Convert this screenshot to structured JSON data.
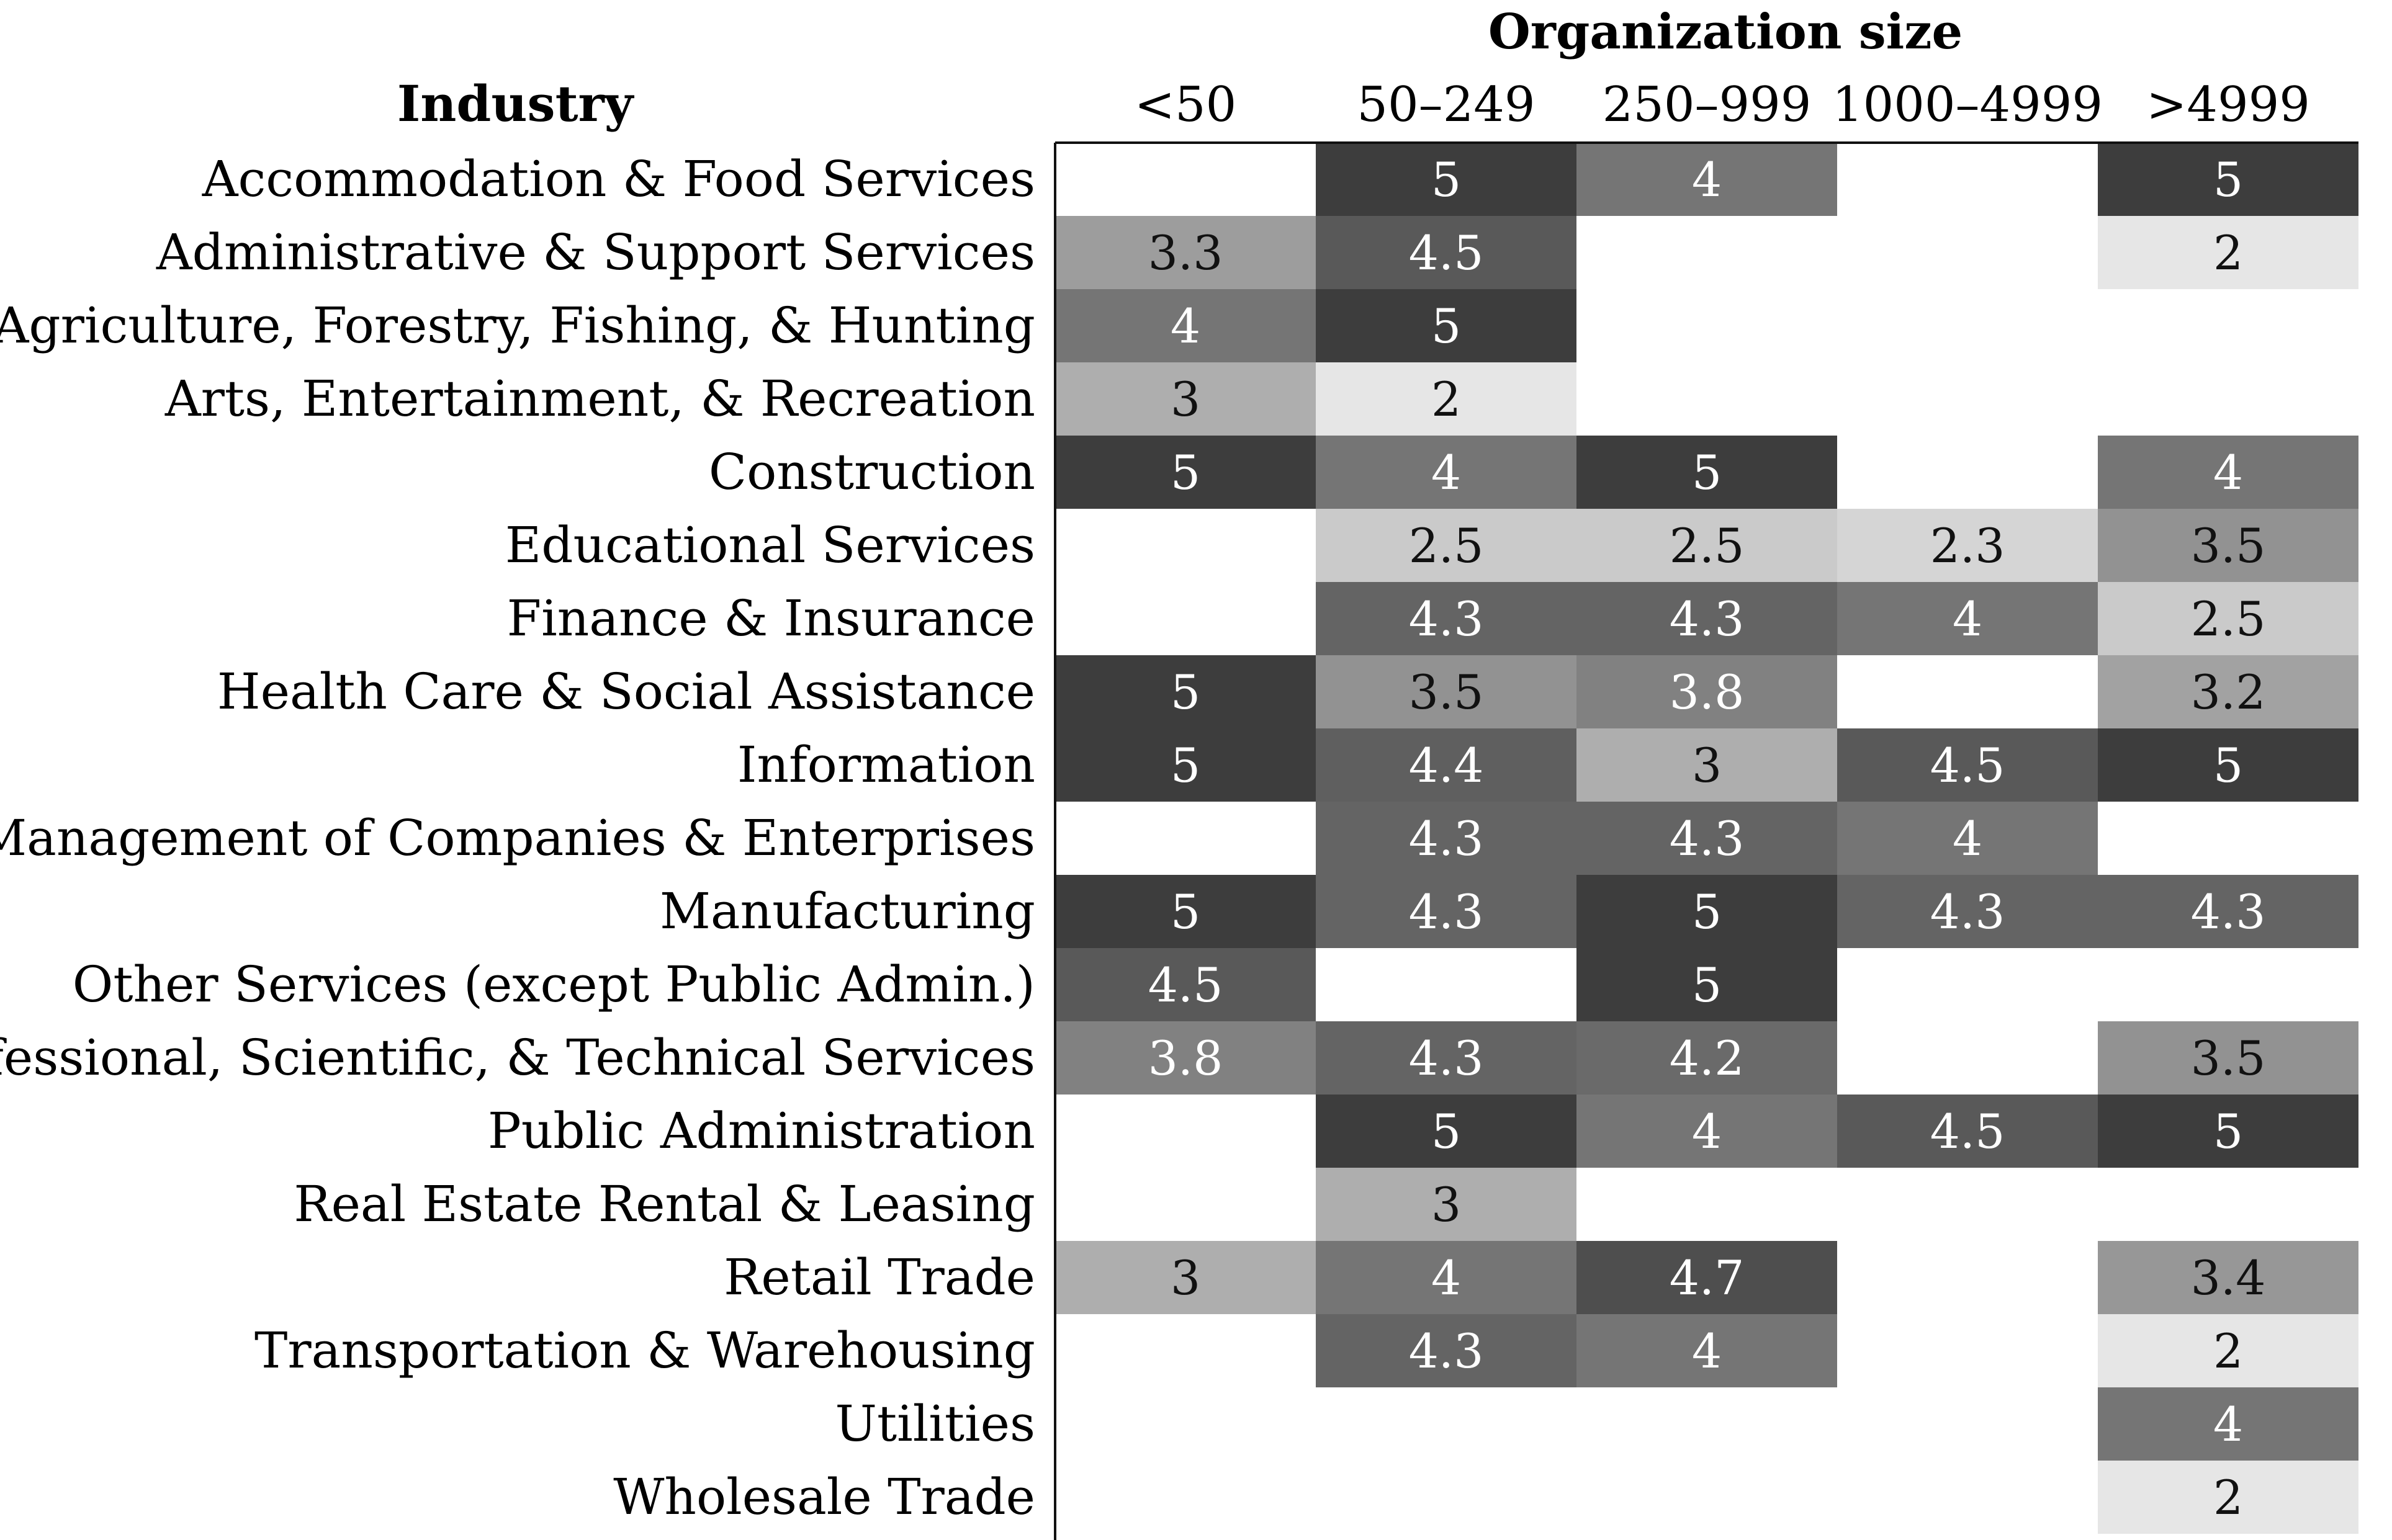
{
  "chart_data": {
    "type": "heatmap",
    "title": "Organization size",
    "row_header": "Industry",
    "columns": [
      "<50",
      "50–249",
      "250–999",
      "1000–4999",
      ">4999"
    ],
    "rows": [
      "Accommodation & Food Services",
      "Administrative & Support Services",
      "Agriculture, Forestry, Fishing, & Hunting",
      "Arts, Entertainment, & Recreation",
      "Construction",
      "Educational Services",
      "Finance & Insurance",
      "Health Care & Social Assistance",
      "Information",
      "Management of Companies & Enterprises",
      "Manufacturing",
      "Other Services (except Public Admin.)",
      "Professional, Scientific, & Technical Services",
      "Public Administration",
      "Real Estate Rental & Leasing",
      "Retail Trade",
      "Transportation & Warehousing",
      "Utilities",
      "Wholesale Trade"
    ],
    "values": [
      [
        null,
        5,
        4,
        null,
        5
      ],
      [
        3.3,
        4.5,
        null,
        null,
        2
      ],
      [
        4,
        5,
        null,
        null,
        null
      ],
      [
        3,
        2,
        null,
        null,
        null
      ],
      [
        5,
        4,
        5,
        null,
        4
      ],
      [
        null,
        2.5,
        2.5,
        2.3,
        3.5
      ],
      [
        null,
        4.3,
        4.3,
        4,
        2.5
      ],
      [
        5,
        3.5,
        3.8,
        null,
        3.2
      ],
      [
        5,
        4.4,
        3,
        4.5,
        5
      ],
      [
        null,
        4.3,
        4.3,
        4,
        null
      ],
      [
        5,
        4.3,
        5,
        4.3,
        4.3
      ],
      [
        4.5,
        null,
        5,
        null,
        null
      ],
      [
        3.8,
        4.3,
        4.2,
        null,
        3.5
      ],
      [
        null,
        5,
        4,
        4.5,
        5
      ],
      [
        null,
        3,
        null,
        null,
        null
      ],
      [
        3,
        4,
        4.7,
        null,
        3.4
      ],
      [
        null,
        4.3,
        4,
        null,
        2
      ],
      [
        null,
        null,
        null,
        null,
        4
      ],
      [
        null,
        null,
        null,
        null,
        2
      ]
    ],
    "value_range": [
      2,
      5
    ],
    "colors": {
      "low": "#e6e6e6",
      "high": "#3d3d3d",
      "text_dark": "#111111",
      "text_light": "#ffffff",
      "axis": "#111111"
    },
    "grid": false
  }
}
